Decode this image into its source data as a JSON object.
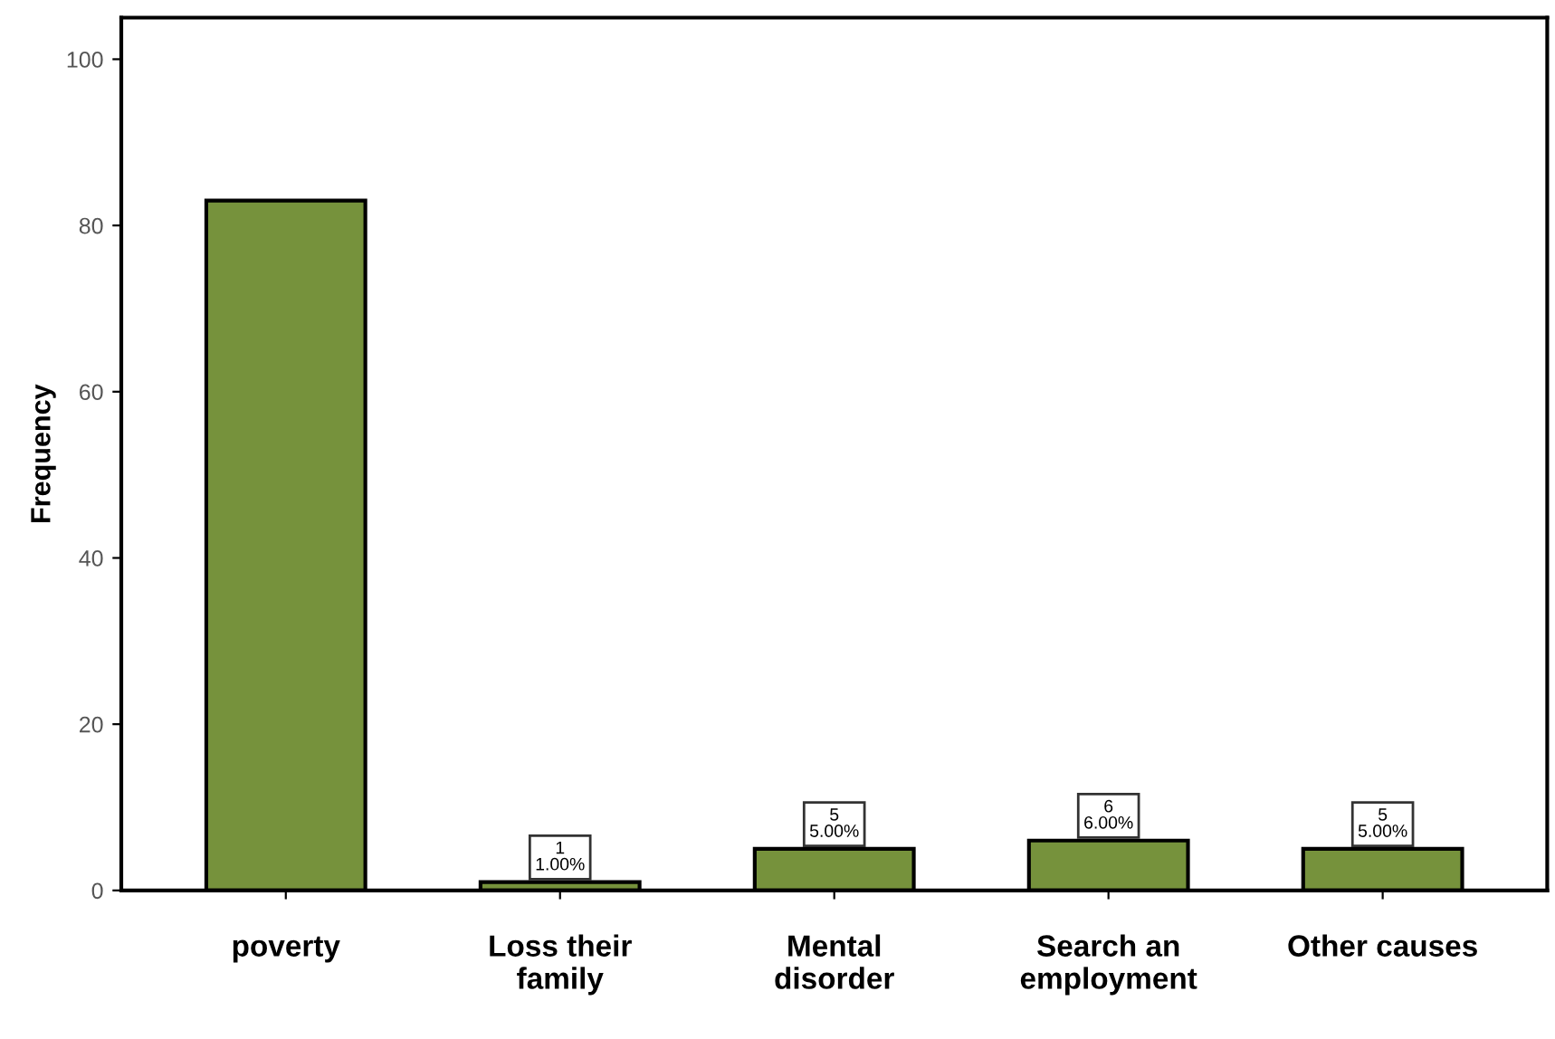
{
  "chart_data": {
    "type": "bar",
    "ylabel": "Frequency",
    "categories": [
      "poverty",
      "Loss their\nfamily",
      "Mental\ndisorder",
      "Search an\nemployment",
      "Other causes"
    ],
    "values": [
      83,
      1,
      5,
      6,
      5
    ],
    "value_labels": [
      null,
      "1\n1.00%",
      "5\n5.00%",
      "6\n6.00%",
      "5\n5.00%"
    ],
    "color": "#76923c",
    "ylim": [
      0,
      105
    ],
    "yticks": [
      0,
      20,
      40,
      60,
      80,
      100
    ],
    "grid": false
  }
}
